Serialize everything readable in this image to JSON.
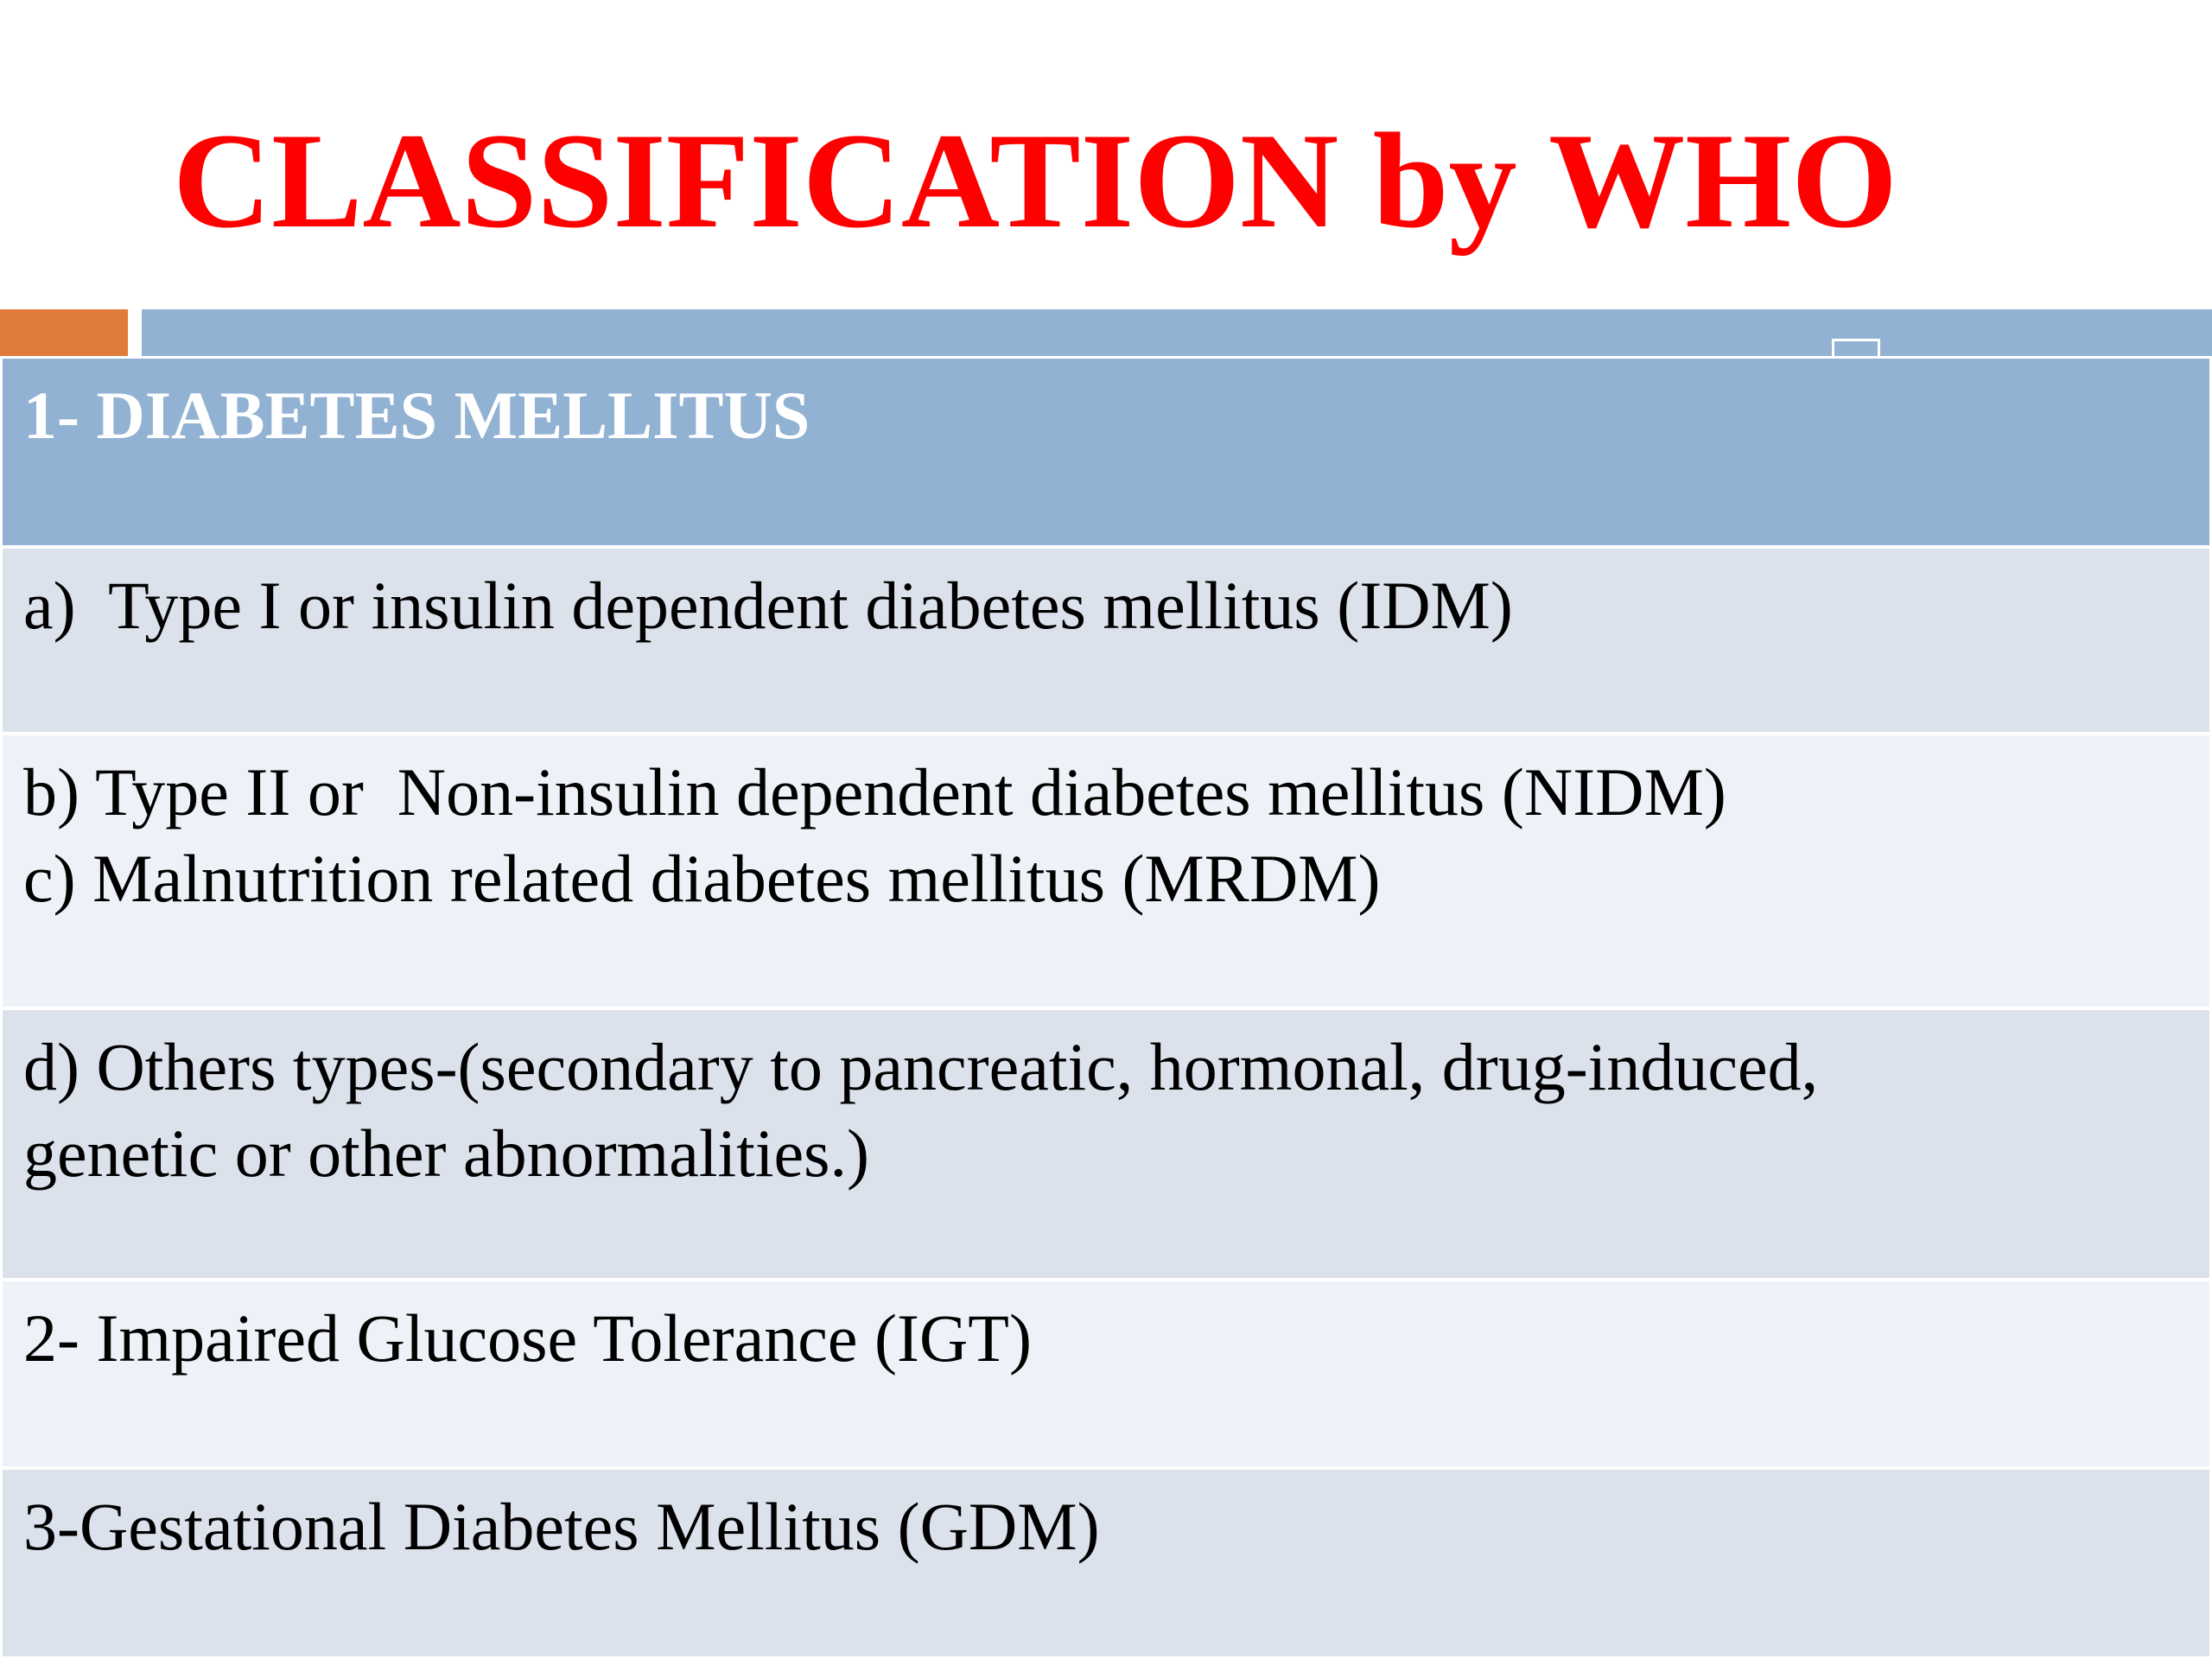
{
  "colors": {
    "title": "#ff0000",
    "accent_orange": "#e07b3c",
    "header_band": "#92b2d3",
    "row_dark": "#dbe2ec",
    "row_light": "#eef2f8",
    "header_text": "#ffffff",
    "body_text": "#000000"
  },
  "slide": {
    "title": "CLASSIFICATION by WHO"
  },
  "table": {
    "header": "1- DIABETES MELLITUS",
    "rows": [
      {
        "lines": [
          "a)  Type I or insulin dependent diabetes mellitus (IDM)"
        ]
      },
      {
        "lines": [
          "b) Type II or  Non-insulin dependent diabetes mellitus (NIDM)",
          "c) Malnutrition related diabetes mellitus (MRDM)"
        ]
      },
      {
        "lines": [
          "d) Others types-(secondary to pancreatic, hormonal, drug-induced,",
          "genetic or other abnormalities.)"
        ]
      },
      {
        "lines": [
          "2- Impaired Glucose Tolerance (IGT)"
        ]
      },
      {
        "lines": [
          "3-Gestational Diabetes Mellitus (GDM)"
        ]
      }
    ]
  }
}
